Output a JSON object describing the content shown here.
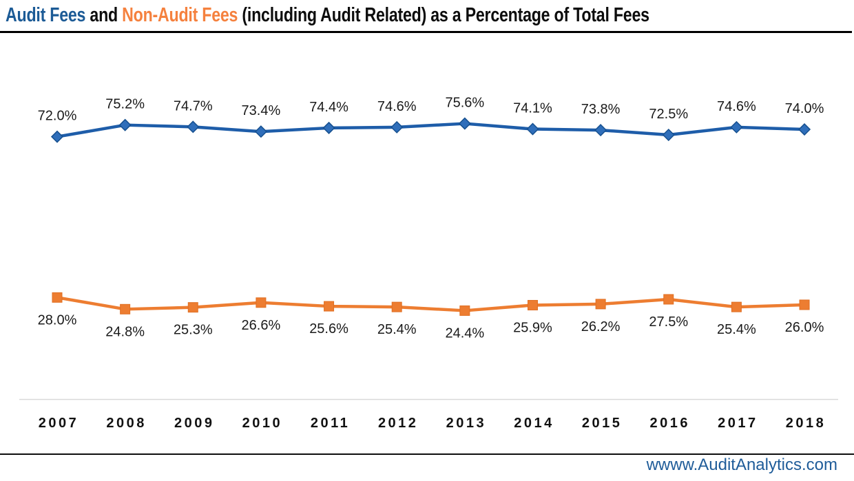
{
  "title": {
    "full": "Audit Fees and Non-Audit Fees (including Audit Related) as a Percentage of Total Fees",
    "parts": [
      {
        "text": "Audit Fees",
        "color": "#1C5B96"
      },
      {
        "text": " and ",
        "color": "#0d0d0d"
      },
      {
        "text": "Non-Audit Fees",
        "color": "#F5813E"
      },
      {
        "text": " (including Audit Related) as a Percentage of Total Fees",
        "color": "#0d0d0d"
      }
    ]
  },
  "footer": {
    "website": "wwww.AuditAnalytics.com",
    "link_color": "#1F5C99"
  },
  "chart_data": {
    "type": "line",
    "categories": [
      "2007",
      "2008",
      "2009",
      "2010",
      "2011",
      "2012",
      "2013",
      "2014",
      "2015",
      "2016",
      "2017",
      "2018"
    ],
    "series": [
      {
        "name": "Audit Fees",
        "color": "#1E5DA9",
        "marker": "diamond",
        "marker_fill": "#2F6EBA",
        "marker_stroke": "#16508F",
        "labels_position": "above",
        "values": [
          72.0,
          75.2,
          74.7,
          73.4,
          74.4,
          74.6,
          75.6,
          74.1,
          73.8,
          72.5,
          74.6,
          74.0
        ]
      },
      {
        "name": "Non-Audit Fees (including Audit Related)",
        "color": "#ED7D31",
        "marker": "square",
        "marker_fill": "#ED7D31",
        "marker_stroke": "#E06F23",
        "labels_position": "below",
        "values": [
          28.0,
          24.8,
          25.3,
          26.6,
          25.6,
          25.4,
          24.4,
          25.9,
          26.2,
          27.5,
          25.4,
          26.0
        ]
      }
    ],
    "value_suffix": "%",
    "label_decimals": 1,
    "data_labels": true,
    "ylim": [
      0,
      100
    ],
    "grid": false,
    "legend": "none",
    "axis_line_color": "#D9D9D9"
  }
}
